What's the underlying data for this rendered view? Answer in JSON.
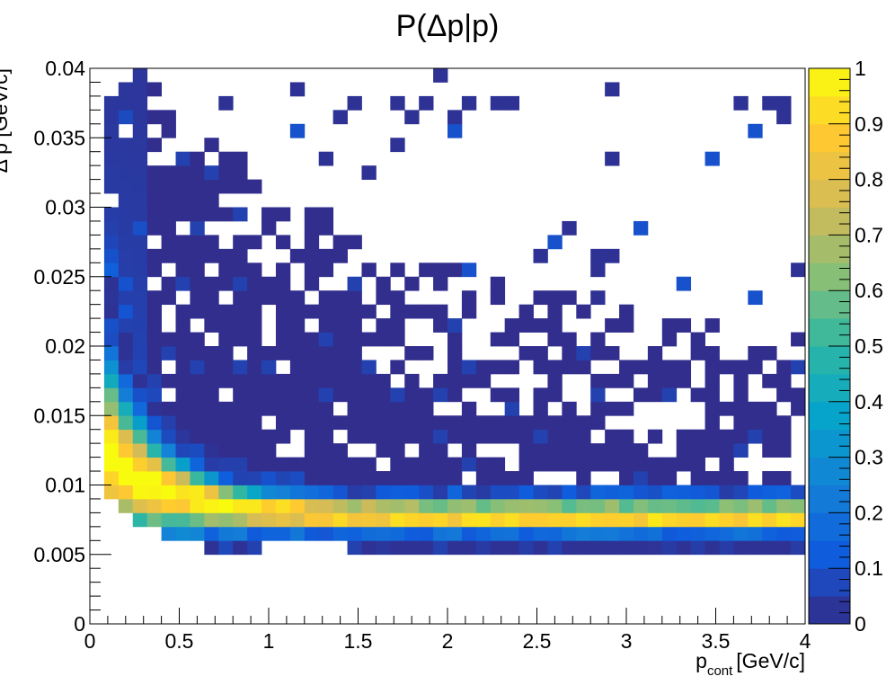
{
  "chart_data": {
    "type": "heatmap",
    "title": "P(Δp|p)",
    "xlabel": {
      "main": "p",
      "sub": "cont",
      "unit": "[GeV/c]"
    },
    "ylabel": "Δ p [GeV/c]",
    "xlim": [
      0,
      4
    ],
    "ylim": [
      0,
      0.04
    ],
    "zlim": [
      0,
      1
    ],
    "x_bin_width": 0.08,
    "y_bin_width": 0.001,
    "x_ticks": [
      "0",
      "0.5",
      "1",
      "1.5",
      "2",
      "2.5",
      "3",
      "3.5",
      "4"
    ],
    "x_tick_values": [
      0,
      0.5,
      1,
      1.5,
      2,
      2.5,
      3,
      3.5,
      4
    ],
    "y_ticks": [
      "0",
      "0.005",
      "0.01",
      "0.015",
      "0.02",
      "0.025",
      "0.03",
      "0.035",
      "0.04"
    ],
    "y_tick_values": [
      0,
      0.005,
      0.01,
      0.015,
      0.02,
      0.025,
      0.03,
      0.035,
      0.04
    ],
    "z_ticks": [
      "0",
      "0.1",
      "0.2",
      "0.3",
      "0.4",
      "0.5",
      "0.6",
      "0.7",
      "0.8",
      "0.9",
      "1"
    ],
    "z_tick_values": [
      0,
      0.1,
      0.2,
      0.3,
      0.4,
      0.5,
      0.6,
      0.7,
      0.8,
      0.9,
      1
    ],
    "palette": "viridis-like (ROOT kBird)",
    "palette_colors": [
      "#352a87",
      "#0f5cdd",
      "#1481d6",
      "#06a4ca",
      "#2eb7a4",
      "#87bf77",
      "#d1bb59",
      "#fec832",
      "#f9fb0e"
    ],
    "grid": false,
    "description_of_values": "normalized conditional probability per p bin; peak (≈1) near Δp≈0.008 for p>0.3, spread rising to ≈0.013 at low p; sparse low values above"
  }
}
